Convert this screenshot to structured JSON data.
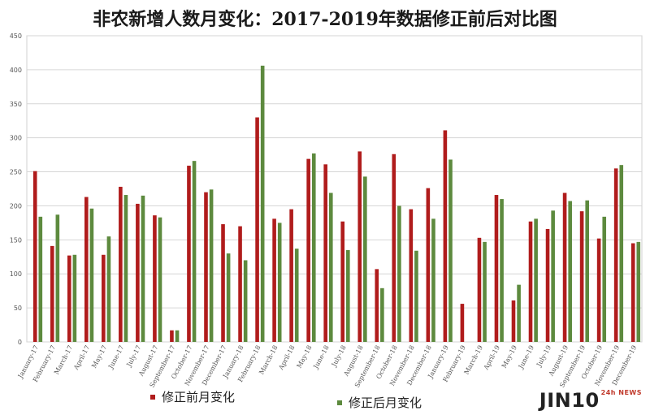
{
  "chart_data": {
    "type": "bar",
    "title": "非农新增人数月变化：2017-2019年数据修正前后对比图",
    "ylim": [
      0,
      450
    ],
    "yticks": [
      0,
      50,
      100,
      150,
      200,
      250,
      300,
      350,
      400,
      450
    ],
    "grid": true,
    "legend_position": "bottom",
    "categories": [
      "January-17",
      "February-17",
      "March-17",
      "April-17",
      "May-17",
      "June-17",
      "July-17",
      "August-17",
      "September-17",
      "October-17",
      "November-17",
      "December-17",
      "January-18",
      "February-18",
      "March-18",
      "April-18",
      "May-18",
      "June-18",
      "July-18",
      "August-18",
      "September-18",
      "October-18",
      "November-18",
      "December-18",
      "January-19",
      "February-19",
      "March-19",
      "April-19",
      "May-19",
      "June-19",
      "July-19",
      "August-19",
      "September-19",
      "October-19",
      "November-19",
      "December-19"
    ],
    "series": [
      {
        "name": "修正前月变化",
        "color": "#b01c1c",
        "values": [
          251,
          141,
          127,
          213,
          128,
          228,
          203,
          186,
          17,
          259,
          220,
          173,
          170,
          330,
          181,
          195,
          269,
          261,
          177,
          280,
          107,
          276,
          195,
          226,
          311,
          56,
          153,
          216,
          61,
          177,
          166,
          219,
          192,
          152,
          255,
          145
        ]
      },
      {
        "name": "修正后月变化",
        "color": "#5d8a3e",
        "values": [
          184,
          187,
          128,
          196,
          155,
          216,
          215,
          183,
          17,
          266,
          224,
          130,
          120,
          406,
          175,
          137,
          277,
          219,
          135,
          243,
          79,
          200,
          134,
          181,
          268,
          null,
          147,
          210,
          84,
          181,
          193,
          207,
          208,
          184,
          260,
          147
        ]
      }
    ]
  },
  "watermark": {
    "text": "JIN10",
    "suffix": "24h NEWS"
  }
}
